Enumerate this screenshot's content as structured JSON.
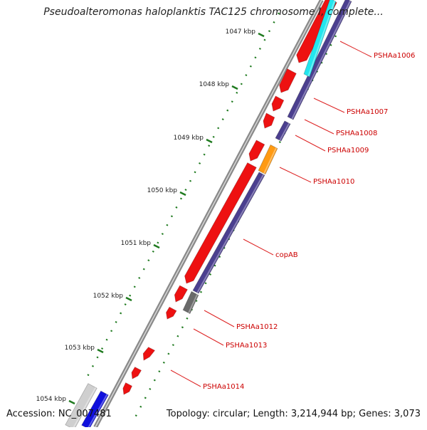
{
  "title": "Pseudoalteromonas haloplanktis TAC125 chromosome I, complete...",
  "footer": {
    "accession": "Accession: NC_007481",
    "summary": "Topology: circular; Length: 3,214,944 bp; Genes: 3,073"
  },
  "ticks": [
    "1047 kbp",
    "1048 kbp",
    "1049 kbp",
    "1050 kbp",
    "1051 kbp",
    "1052 kbp",
    "1053 kbp",
    "1054 kbp"
  ],
  "gene_labels": [
    "PSHAa1006",
    "PSHAa1007",
    "PSHAa1008",
    "PSHAa1009",
    "PSHAa1010",
    "copAB",
    "PSHAa1012",
    "PSHAa1013",
    "PSHAa1014"
  ],
  "colors": {
    "backbone": "#8a8a8a",
    "cds": "#ee1111",
    "gene_bar": "#4b3f8f",
    "cyan_feature": "#22e6ee",
    "orange_feature": "#ff9a12",
    "gray_feature": "#6a6a6a",
    "blue_feature": "#1010dd",
    "tick_green": "#1f7a1f",
    "label_red": "#cc0000",
    "leader_red": "#dd2222"
  }
}
